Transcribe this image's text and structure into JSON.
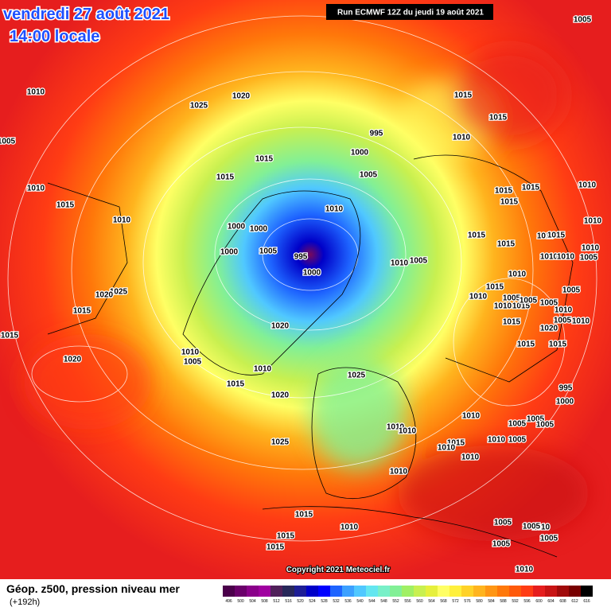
{
  "header": {
    "date": "vendredi 27 août 2021",
    "time": "14:00 locale",
    "run": "Run ECMWF 12Z du jeudi 19 août 2021"
  },
  "footer": {
    "title": "Géop. z500, pression niveau mer",
    "lead": "(+192h)",
    "copyright": "Copyright 2021 Meteociel.fr"
  },
  "legend": {
    "labels": [
      "496",
      "500",
      "504",
      "508",
      "512",
      "516",
      "520",
      "524",
      "528",
      "532",
      "536",
      "540",
      "544",
      "548",
      "552",
      "556",
      "560",
      "564",
      "568",
      "572",
      "576",
      "580",
      "584",
      "588",
      "592",
      "596",
      "600",
      "604",
      "608",
      "612",
      "616"
    ],
    "colors": [
      "#4b004b",
      "#6a006a",
      "#8a008a",
      "#a000a0",
      "#50205a",
      "#28285a",
      "#1e1e96",
      "#0000c8",
      "#0000ff",
      "#1e64ff",
      "#3ca0ff",
      "#50c8ff",
      "#64e6f0",
      "#78f0c8",
      "#82f096",
      "#a0f064",
      "#c8f050",
      "#e6f03c",
      "#ffff64",
      "#fff03c",
      "#ffd228",
      "#ffb41e",
      "#ff9614",
      "#ff780a",
      "#ff5a0a",
      "#ff3c14",
      "#e61e1e",
      "#c81414",
      "#a00a0a",
      "#780000",
      "#000000"
    ]
  },
  "isobar_labels": [
    "1010",
    "1025",
    "1020",
    "1015",
    "1015",
    "1005",
    "995",
    "1010",
    "1000",
    "1015",
    "1005",
    "1015",
    "1010",
    "1015",
    "1015",
    "1010",
    "1015",
    "1015",
    "1010",
    "1010",
    "1010",
    "1000",
    "1000",
    "1015",
    "1015",
    "1015",
    "1005",
    "1000",
    "995",
    "1015",
    "1010",
    "1010",
    "1005",
    "1010",
    "1010",
    "1005",
    "1000",
    "1010",
    "1025",
    "1020",
    "1015",
    "1005",
    "1005",
    "1010",
    "1015",
    "1005",
    "1015",
    "1010",
    "1005",
    "1010",
    "1005",
    "1010",
    "1015",
    "1020",
    "1020",
    "1015",
    "1015",
    "1015",
    "1010",
    "1005",
    "1020",
    "1010",
    "1025",
    "1015",
    "995",
    "1020",
    "1000",
    "1010",
    "1005",
    "1005",
    "1010",
    "1010",
    "1005",
    "1005",
    "1010",
    "1025",
    "1015",
    "1010",
    "1010",
    "1010",
    "1015",
    "1010",
    "1005",
    "1010",
    "1005",
    "1005",
    "1005",
    "1015",
    "1015",
    "1010",
    "1005"
  ]
}
